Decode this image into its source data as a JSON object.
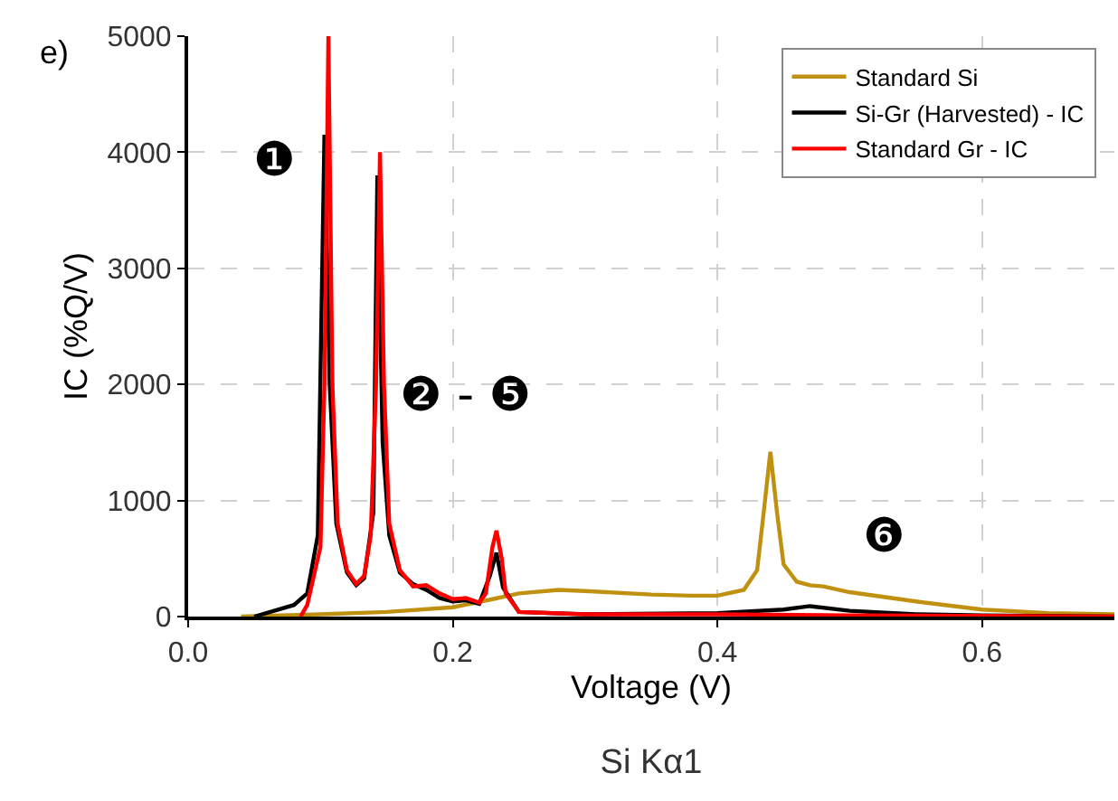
{
  "chart_data": {
    "type": "line",
    "title": "Si Kα1",
    "xlabel": "Voltage (V)",
    "ylabel": "IC (%Q/V)",
    "annotations": [
      "e)",
      "❶",
      "❷ - ❺",
      "❻"
    ],
    "series": [
      {
        "name": "Standard Si",
        "color": "#c09010",
        "x": [
          0.04,
          0.1,
          0.15,
          0.2,
          0.23,
          0.25,
          0.28,
          0.3,
          0.35,
          0.38,
          0.4,
          0.42,
          0.43,
          0.435,
          0.44,
          0.445,
          0.45,
          0.46,
          0.47,
          0.48,
          0.5,
          0.55,
          0.6,
          0.65,
          0.7
        ],
        "values": [
          0,
          20,
          40,
          80,
          150,
          200,
          230,
          220,
          190,
          180,
          180,
          230,
          400,
          900,
          1420,
          900,
          450,
          300,
          270,
          260,
          210,
          130,
          60,
          30,
          20
        ]
      },
      {
        "name": "Si-Gr (Harvested) - IC",
        "color": "#000000",
        "x": [
          0.05,
          0.065,
          0.08,
          0.09,
          0.098,
          0.103,
          0.107,
          0.112,
          0.12,
          0.127,
          0.133,
          0.14,
          0.143,
          0.147,
          0.152,
          0.16,
          0.17,
          0.18,
          0.19,
          0.2,
          0.21,
          0.22,
          0.228,
          0.233,
          0.238,
          0.25,
          0.3,
          0.4,
          0.45,
          0.47,
          0.5,
          0.55,
          0.6,
          0.7
        ],
        "values": [
          0,
          50,
          100,
          200,
          700,
          4150,
          2000,
          800,
          380,
          270,
          330,
          900,
          3800,
          1500,
          700,
          380,
          280,
          230,
          160,
          130,
          140,
          110,
          350,
          550,
          250,
          40,
          20,
          30,
          60,
          90,
          50,
          20,
          10,
          0
        ]
      },
      {
        "name": "Standard Gr - IC",
        "color": "#ff0000",
        "x": [
          0.085,
          0.09,
          0.1,
          0.103,
          0.106,
          0.109,
          0.113,
          0.12,
          0.127,
          0.133,
          0.138,
          0.142,
          0.145,
          0.148,
          0.152,
          0.16,
          0.17,
          0.18,
          0.19,
          0.2,
          0.21,
          0.22,
          0.225,
          0.23,
          0.233,
          0.237,
          0.24,
          0.25,
          0.3,
          0.4,
          0.5,
          0.7
        ],
        "values": [
          0,
          100,
          600,
          2000,
          5000,
          2000,
          800,
          400,
          280,
          350,
          700,
          2000,
          4000,
          2000,
          800,
          400,
          260,
          270,
          200,
          150,
          160,
          120,
          200,
          600,
          740,
          500,
          200,
          40,
          20,
          20,
          10,
          0
        ]
      }
    ],
    "xlim": [
      0,
      0.7
    ],
    "xticks": [
      {
        "value": 0,
        "label": "0.0"
      },
      {
        "value": 0.2,
        "label": "0.2"
      },
      {
        "value": 0.4,
        "label": "0.4"
      },
      {
        "value": 0.6,
        "label": "0.6"
      }
    ],
    "ylim": [
      0,
      5000
    ],
    "yticks": [
      0,
      1000,
      2000,
      3000,
      4000,
      5000
    ],
    "grid": true,
    "legend": "top right",
    "marker": "none",
    "line_style": "solid"
  }
}
